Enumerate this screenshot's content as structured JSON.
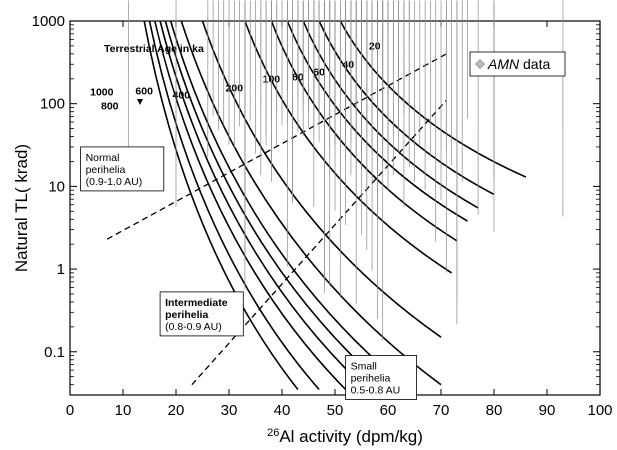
{
  "chart_data": {
    "type": "scatter",
    "xlabel_sup": "26",
    "xlabel": "Al activity (dpm/kg)",
    "ylabel": "Natural TL( krad)",
    "xlim": [
      0,
      100
    ],
    "ylim": [
      0.03,
      1000
    ],
    "yscale": "log",
    "x_ticks": [
      0,
      10,
      20,
      30,
      40,
      50,
      60,
      70,
      80,
      90,
      100
    ],
    "y_ticks": [
      {
        "value": 0.1,
        "label": "0.1"
      },
      {
        "value": 1,
        "label": "1"
      },
      {
        "value": 10,
        "label": "10"
      },
      {
        "value": 100,
        "label": "100"
      },
      {
        "value": 1000,
        "label": "1000"
      }
    ],
    "legend": {
      "series_name": "AMN",
      "suffix": " data",
      "position": "top-right"
    },
    "annotation_title": "Terrestrial Age in ka",
    "age_curves": [
      {
        "label": "20",
        "line": [
          [
            51,
            1000
          ],
          [
            86,
            13
          ]
        ]
      },
      {
        "label": "40",
        "line": [
          [
            47,
            1000
          ],
          [
            80,
            8
          ]
        ]
      },
      {
        "label": "60",
        "line": [
          [
            44,
            1000
          ],
          [
            77,
            5.5
          ]
        ]
      },
      {
        "label": "80",
        "line": [
          [
            41,
            1000
          ],
          [
            75,
            3.8
          ]
        ]
      },
      {
        "label": "100",
        "line": [
          [
            38,
            1000
          ],
          [
            73,
            2.2
          ]
        ]
      },
      {
        "label": "200",
        "line": [
          [
            33,
            1000
          ],
          [
            72,
            0.9
          ]
        ]
      },
      {
        "label": "400",
        "line": [
          [
            25,
            1000
          ],
          [
            70,
            0.15
          ]
        ]
      },
      {
        "label": "600",
        "line": [
          [
            21,
            1000
          ],
          [
            70,
            0.04
          ]
        ]
      },
      {
        "label": "800",
        "line": [
          [
            19,
            1000
          ],
          [
            64,
            0.035
          ]
        ]
      },
      {
        "label": "1000",
        "line": [
          [
            18,
            1000
          ],
          [
            60,
            0.035
          ]
        ]
      }
    ],
    "extra_curves": [
      [
        [
          17,
          1000
        ],
        [
          56,
          0.035
        ]
      ],
      [
        [
          16,
          1000
        ],
        [
          52,
          0.035
        ]
      ],
      [
        [
          15,
          1000
        ],
        [
          47,
          0.035
        ]
      ],
      [
        [
          14,
          1000
        ],
        [
          43,
          0.035
        ]
      ]
    ],
    "curve_label_positions": [
      {
        "label": "20",
        "x": 57.5,
        "y": 450
      },
      {
        "label": "40",
        "x": 52.5,
        "y": 270
      },
      {
        "label": "60",
        "x": 47,
        "y": 220
      },
      {
        "label": "80",
        "x": 43,
        "y": 190
      },
      {
        "label": "100",
        "x": 38,
        "y": 180
      },
      {
        "label": "200",
        "x": 31,
        "y": 140
      },
      {
        "label": "400",
        "x": 21,
        "y": 115
      },
      {
        "label": "600",
        "x": 14,
        "y": 130
      },
      {
        "label": "800",
        "x": 7.5,
        "y": 85
      },
      {
        "label": "1000",
        "x": 6,
        "y": 125
      }
    ],
    "boundaries": [
      [
        [
          7,
          2.3
        ],
        [
          71,
          400
        ]
      ],
      [
        [
          23,
          0.04
        ],
        [
          71,
          110
        ]
      ]
    ],
    "regions": [
      {
        "name": "normal",
        "lines": [
          "Normal",
          "perihelia",
          "(0.9-1.0 AU)"
        ],
        "x": 2,
        "y": 30
      },
      {
        "name": "intermediate",
        "lines": [
          "Intermediate",
          "perihelia",
          "(0.8-0.9 AU)"
        ],
        "x": 17,
        "y": 0.53
      },
      {
        "name": "small",
        "lines": [
          "Small",
          "perihelia",
          "0.5-0.8 AU"
        ],
        "x": 52,
        "y": 0.09
      }
    ],
    "points": [
      [
        11,
        8
      ],
      [
        20,
        5
      ],
      [
        26,
        20
      ],
      [
        27,
        62
      ],
      [
        28,
        42
      ],
      [
        29,
        48
      ],
      [
        30,
        28
      ],
      [
        31,
        25
      ],
      [
        32,
        47
      ],
      [
        33,
        4
      ],
      [
        33,
        1.1
      ],
      [
        33,
        0.5
      ],
      [
        34,
        55
      ],
      [
        35,
        22
      ],
      [
        36,
        12
      ],
      [
        36,
        83
      ],
      [
        37,
        38
      ],
      [
        37,
        28
      ],
      [
        38,
        14
      ],
      [
        38,
        55
      ],
      [
        38,
        10
      ],
      [
        39,
        62
      ],
      [
        39,
        27
      ],
      [
        40,
        48
      ],
      [
        41,
        120
      ],
      [
        41,
        50
      ],
      [
        41,
        0.95
      ],
      [
        42,
        6
      ],
      [
        42,
        5.5
      ],
      [
        43,
        235
      ],
      [
        43,
        100
      ],
      [
        43,
        40
      ],
      [
        44,
        75
      ],
      [
        44,
        36
      ],
      [
        44,
        95
      ],
      [
        45,
        70
      ],
      [
        45,
        45
      ],
      [
        46,
        110
      ],
      [
        46,
        62
      ],
      [
        46,
        35
      ],
      [
        46,
        5
      ],
      [
        47,
        85
      ],
      [
        47,
        125
      ],
      [
        47,
        55
      ],
      [
        47,
        30
      ],
      [
        48,
        60
      ],
      [
        48,
        90
      ],
      [
        48,
        0.6
      ],
      [
        48,
        0.45
      ],
      [
        49,
        40
      ],
      [
        49,
        130
      ],
      [
        49,
        20
      ],
      [
        49,
        0.55
      ],
      [
        50,
        72
      ],
      [
        50,
        28
      ],
      [
        50,
        4.5
      ],
      [
        51,
        0.4
      ],
      [
        51,
        1.7
      ],
      [
        52,
        60
      ],
      [
        52,
        35
      ],
      [
        52,
        18
      ],
      [
        52,
        3
      ],
      [
        53,
        30
      ],
      [
        53,
        48
      ],
      [
        53,
        12
      ],
      [
        54,
        82
      ],
      [
        54,
        22
      ],
      [
        54,
        7
      ],
      [
        54,
        0.33
      ],
      [
        55,
        45
      ],
      [
        55,
        25
      ],
      [
        55,
        14
      ],
      [
        55,
        2.3
      ],
      [
        56,
        52
      ],
      [
        56,
        34
      ],
      [
        56,
        9
      ],
      [
        56,
        1.5
      ],
      [
        57,
        40
      ],
      [
        57,
        22
      ],
      [
        57,
        0.85
      ],
      [
        58,
        18
      ],
      [
        58,
        11
      ],
      [
        58,
        3.5
      ],
      [
        58,
        0.22
      ],
      [
        59,
        55
      ],
      [
        59,
        28
      ],
      [
        59,
        14
      ],
      [
        59,
        0.12
      ],
      [
        60,
        45
      ],
      [
        60,
        20
      ],
      [
        60,
        8
      ],
      [
        61,
        36
      ],
      [
        61,
        12
      ],
      [
        62,
        150
      ],
      [
        62,
        42
      ],
      [
        62,
        22
      ],
      [
        63,
        65
      ],
      [
        63,
        5
      ],
      [
        64,
        32
      ],
      [
        64,
        15
      ],
      [
        65,
        10
      ],
      [
        66,
        27
      ],
      [
        67,
        8
      ],
      [
        68,
        20
      ],
      [
        69,
        1.9
      ],
      [
        70,
        6
      ],
      [
        71,
        25
      ],
      [
        71,
        0.8
      ],
      [
        72,
        16
      ],
      [
        73,
        0.19
      ],
      [
        73,
        0.35
      ],
      [
        74,
        10
      ],
      [
        75,
        58
      ],
      [
        77,
        4
      ],
      [
        80,
        11
      ],
      [
        80,
        2.5
      ],
      [
        93,
        3.8
      ]
    ]
  }
}
